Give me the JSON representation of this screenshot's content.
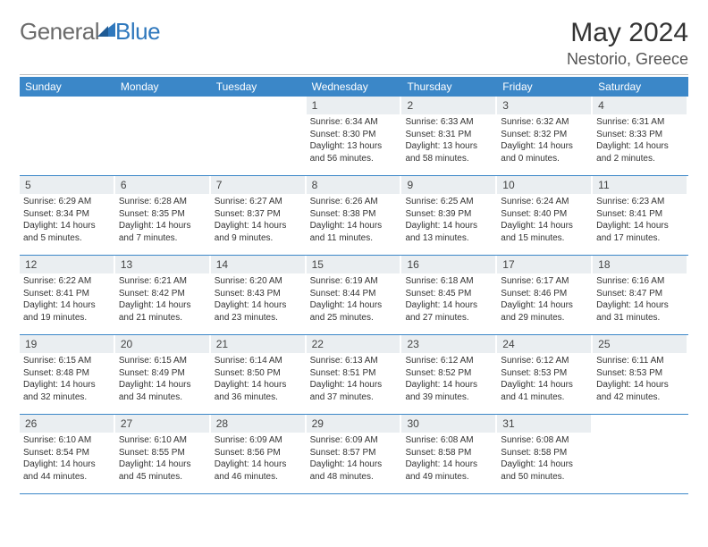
{
  "brand": {
    "part1": "General",
    "part2": "Blue"
  },
  "title": "May 2024",
  "location": "Nestorio, Greece",
  "day_headers": [
    "Sunday",
    "Monday",
    "Tuesday",
    "Wednesday",
    "Thursday",
    "Friday",
    "Saturday"
  ],
  "colors": {
    "header_bg": "#3b87c8",
    "daynum_bg": "#eaeef1",
    "week_divider": "#3b87c8",
    "logo_gray": "#6b6b6b",
    "logo_blue": "#2f78bd"
  },
  "weeks": [
    [
      {
        "day": "",
        "empty": true
      },
      {
        "day": "",
        "empty": true
      },
      {
        "day": "",
        "empty": true
      },
      {
        "day": "1",
        "sunrise": "Sunrise: 6:34 AM",
        "sunset": "Sunset: 8:30 PM",
        "daylight1": "Daylight: 13 hours",
        "daylight2": "and 56 minutes."
      },
      {
        "day": "2",
        "sunrise": "Sunrise: 6:33 AM",
        "sunset": "Sunset: 8:31 PM",
        "daylight1": "Daylight: 13 hours",
        "daylight2": "and 58 minutes."
      },
      {
        "day": "3",
        "sunrise": "Sunrise: 6:32 AM",
        "sunset": "Sunset: 8:32 PM",
        "daylight1": "Daylight: 14 hours",
        "daylight2": "and 0 minutes."
      },
      {
        "day": "4",
        "sunrise": "Sunrise: 6:31 AM",
        "sunset": "Sunset: 8:33 PM",
        "daylight1": "Daylight: 14 hours",
        "daylight2": "and 2 minutes."
      }
    ],
    [
      {
        "day": "5",
        "sunrise": "Sunrise: 6:29 AM",
        "sunset": "Sunset: 8:34 PM",
        "daylight1": "Daylight: 14 hours",
        "daylight2": "and 5 minutes."
      },
      {
        "day": "6",
        "sunrise": "Sunrise: 6:28 AM",
        "sunset": "Sunset: 8:35 PM",
        "daylight1": "Daylight: 14 hours",
        "daylight2": "and 7 minutes."
      },
      {
        "day": "7",
        "sunrise": "Sunrise: 6:27 AM",
        "sunset": "Sunset: 8:37 PM",
        "daylight1": "Daylight: 14 hours",
        "daylight2": "and 9 minutes."
      },
      {
        "day": "8",
        "sunrise": "Sunrise: 6:26 AM",
        "sunset": "Sunset: 8:38 PM",
        "daylight1": "Daylight: 14 hours",
        "daylight2": "and 11 minutes."
      },
      {
        "day": "9",
        "sunrise": "Sunrise: 6:25 AM",
        "sunset": "Sunset: 8:39 PM",
        "daylight1": "Daylight: 14 hours",
        "daylight2": "and 13 minutes."
      },
      {
        "day": "10",
        "sunrise": "Sunrise: 6:24 AM",
        "sunset": "Sunset: 8:40 PM",
        "daylight1": "Daylight: 14 hours",
        "daylight2": "and 15 minutes."
      },
      {
        "day": "11",
        "sunrise": "Sunrise: 6:23 AM",
        "sunset": "Sunset: 8:41 PM",
        "daylight1": "Daylight: 14 hours",
        "daylight2": "and 17 minutes."
      }
    ],
    [
      {
        "day": "12",
        "sunrise": "Sunrise: 6:22 AM",
        "sunset": "Sunset: 8:41 PM",
        "daylight1": "Daylight: 14 hours",
        "daylight2": "and 19 minutes."
      },
      {
        "day": "13",
        "sunrise": "Sunrise: 6:21 AM",
        "sunset": "Sunset: 8:42 PM",
        "daylight1": "Daylight: 14 hours",
        "daylight2": "and 21 minutes."
      },
      {
        "day": "14",
        "sunrise": "Sunrise: 6:20 AM",
        "sunset": "Sunset: 8:43 PM",
        "daylight1": "Daylight: 14 hours",
        "daylight2": "and 23 minutes."
      },
      {
        "day": "15",
        "sunrise": "Sunrise: 6:19 AM",
        "sunset": "Sunset: 8:44 PM",
        "daylight1": "Daylight: 14 hours",
        "daylight2": "and 25 minutes."
      },
      {
        "day": "16",
        "sunrise": "Sunrise: 6:18 AM",
        "sunset": "Sunset: 8:45 PM",
        "daylight1": "Daylight: 14 hours",
        "daylight2": "and 27 minutes."
      },
      {
        "day": "17",
        "sunrise": "Sunrise: 6:17 AM",
        "sunset": "Sunset: 8:46 PM",
        "daylight1": "Daylight: 14 hours",
        "daylight2": "and 29 minutes."
      },
      {
        "day": "18",
        "sunrise": "Sunrise: 6:16 AM",
        "sunset": "Sunset: 8:47 PM",
        "daylight1": "Daylight: 14 hours",
        "daylight2": "and 31 minutes."
      }
    ],
    [
      {
        "day": "19",
        "sunrise": "Sunrise: 6:15 AM",
        "sunset": "Sunset: 8:48 PM",
        "daylight1": "Daylight: 14 hours",
        "daylight2": "and 32 minutes."
      },
      {
        "day": "20",
        "sunrise": "Sunrise: 6:15 AM",
        "sunset": "Sunset: 8:49 PM",
        "daylight1": "Daylight: 14 hours",
        "daylight2": "and 34 minutes."
      },
      {
        "day": "21",
        "sunrise": "Sunrise: 6:14 AM",
        "sunset": "Sunset: 8:50 PM",
        "daylight1": "Daylight: 14 hours",
        "daylight2": "and 36 minutes."
      },
      {
        "day": "22",
        "sunrise": "Sunrise: 6:13 AM",
        "sunset": "Sunset: 8:51 PM",
        "daylight1": "Daylight: 14 hours",
        "daylight2": "and 37 minutes."
      },
      {
        "day": "23",
        "sunrise": "Sunrise: 6:12 AM",
        "sunset": "Sunset: 8:52 PM",
        "daylight1": "Daylight: 14 hours",
        "daylight2": "and 39 minutes."
      },
      {
        "day": "24",
        "sunrise": "Sunrise: 6:12 AM",
        "sunset": "Sunset: 8:53 PM",
        "daylight1": "Daylight: 14 hours",
        "daylight2": "and 41 minutes."
      },
      {
        "day": "25",
        "sunrise": "Sunrise: 6:11 AM",
        "sunset": "Sunset: 8:53 PM",
        "daylight1": "Daylight: 14 hours",
        "daylight2": "and 42 minutes."
      }
    ],
    [
      {
        "day": "26",
        "sunrise": "Sunrise: 6:10 AM",
        "sunset": "Sunset: 8:54 PM",
        "daylight1": "Daylight: 14 hours",
        "daylight2": "and 44 minutes."
      },
      {
        "day": "27",
        "sunrise": "Sunrise: 6:10 AM",
        "sunset": "Sunset: 8:55 PM",
        "daylight1": "Daylight: 14 hours",
        "daylight2": "and 45 minutes."
      },
      {
        "day": "28",
        "sunrise": "Sunrise: 6:09 AM",
        "sunset": "Sunset: 8:56 PM",
        "daylight1": "Daylight: 14 hours",
        "daylight2": "and 46 minutes."
      },
      {
        "day": "29",
        "sunrise": "Sunrise: 6:09 AM",
        "sunset": "Sunset: 8:57 PM",
        "daylight1": "Daylight: 14 hours",
        "daylight2": "and 48 minutes."
      },
      {
        "day": "30",
        "sunrise": "Sunrise: 6:08 AM",
        "sunset": "Sunset: 8:58 PM",
        "daylight1": "Daylight: 14 hours",
        "daylight2": "and 49 minutes."
      },
      {
        "day": "31",
        "sunrise": "Sunrise: 6:08 AM",
        "sunset": "Sunset: 8:58 PM",
        "daylight1": "Daylight: 14 hours",
        "daylight2": "and 50 minutes."
      },
      {
        "day": "",
        "empty": true
      }
    ]
  ]
}
